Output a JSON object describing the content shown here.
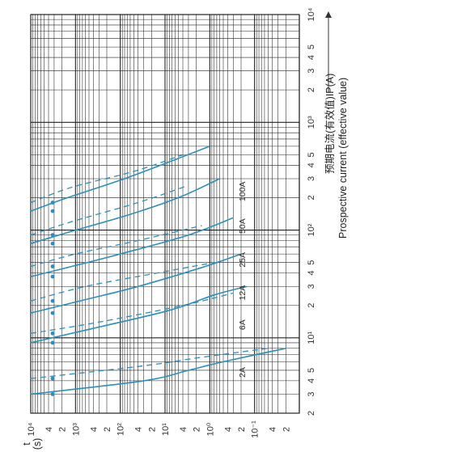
{
  "chart_data": {
    "type": "line",
    "title": "",
    "current_axis_label": "预期电流(有效值)IP(A) ——— Prospective current (effective value)",
    "current_axis_label_cn": "预期电流(有效值)IP(A)",
    "current_axis_label_en": "Prospective current (effective value)",
    "time_axis_label": "t (s)",
    "time_axis_label_t": "t",
    "time_axis_label_s": "(s)",
    "current_scale": "log",
    "time_scale": "log",
    "current_range": [
      2,
      10000
    ],
    "time_range": [
      0.01,
      10000
    ],
    "current_tick_labels": [
      "2",
      "3",
      "4",
      "5",
      "10¹",
      "2",
      "3",
      "4",
      "5",
      "10²",
      "2",
      "3",
      "4",
      "5",
      "10³",
      "2",
      "3",
      "4",
      "5",
      "10⁴"
    ],
    "time_tick_labels": [
      "10⁴",
      "4",
      "2",
      "10³",
      "4",
      "2",
      "10²",
      "4",
      "2",
      "10¹",
      "4",
      "2",
      "10⁰",
      "4",
      "2",
      "10⁻¹",
      "4",
      "2"
    ],
    "grid": true,
    "line_color": "#2a8fc0",
    "series": [
      {
        "name": "2A",
        "solid": {
          "x": [
            3.0,
            4.0,
            5.0,
            6.0,
            8.0
          ],
          "y": [
            10000,
            30,
            3.0,
            0.5,
            0.02
          ]
        },
        "dashed": {
          "x": [
            4.2,
            5.5,
            6.5,
            8.0
          ],
          "y": [
            10000,
            30,
            2.0,
            0.05
          ]
        }
      },
      {
        "name": "6A",
        "solid": {
          "x": [
            9.0,
            12.0,
            18.0,
            25.0,
            30.0
          ],
          "y": [
            10000,
            500,
            8.0,
            0.8,
            0.15
          ]
        },
        "dashed": {
          "x": [
            11.0,
            14.0,
            20.0,
            26.0
          ],
          "y": [
            10000,
            300,
            4.0,
            0.3
          ]
        }
      },
      {
        "name": "12A",
        "solid": {
          "x": [
            17.0,
            22.0,
            30.0,
            45.0,
            60.0
          ],
          "y": [
            10000,
            800,
            40,
            1.5,
            0.2
          ]
        },
        "dashed": {
          "x": [
            22.0,
            30.0,
            40.0,
            50.0
          ],
          "y": [
            10000,
            600,
            15,
            0.8
          ]
        }
      },
      {
        "name": "25A",
        "solid": {
          "x": [
            37.0,
            45.0,
            60.0,
            90.0,
            130.0
          ],
          "y": [
            10000,
            1500,
            100,
            3.0,
            0.3
          ]
        },
        "dashed": {
          "x": [
            46.0,
            60.0,
            80.0,
            110.0
          ],
          "y": [
            10000,
            1000,
            40,
            1.5
          ]
        }
      },
      {
        "name": "50A",
        "solid": {
          "x": [
            75.0,
            95.0,
            140.0,
            200.0,
            300.0
          ],
          "y": [
            10000,
            1500,
            60,
            5.0,
            0.6
          ]
        },
        "dashed": {
          "x": [
            90.0,
            120.0,
            180.0,
            260.0
          ],
          "y": [
            10000,
            1200,
            40,
            3.0
          ]
        }
      },
      {
        "name": "100A",
        "solid": {
          "x": [
            150.0,
            200.0,
            300.0,
            450.0,
            600.0
          ],
          "y": [
            10000,
            1500,
            80,
            6.0,
            1.0
          ]
        },
        "dashed": {
          "x": [
            180.0,
            250.0,
            350.0,
            500.0
          ],
          "y": [
            10000,
            1200,
            50,
            4.0
          ]
        }
      }
    ]
  }
}
